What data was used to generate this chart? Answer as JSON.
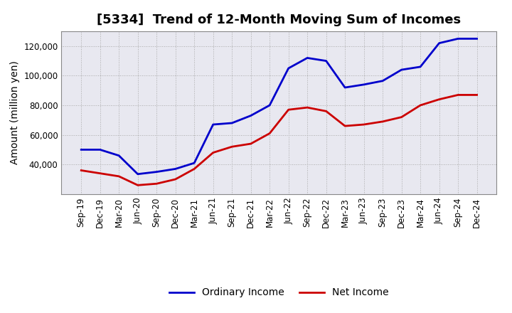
{
  "title": "[5334]  Trend of 12-Month Moving Sum of Incomes",
  "ylabel": "Amount (million yen)",
  "background_color": "#ffffff",
  "plot_bg_color": "#e8e8f0",
  "grid_color": "#aaaaaa",
  "xlabels": [
    "Sep-19",
    "Dec-19",
    "Mar-20",
    "Jun-20",
    "Sep-20",
    "Dec-20",
    "Mar-21",
    "Jun-21",
    "Sep-21",
    "Dec-21",
    "Mar-22",
    "Jun-22",
    "Sep-22",
    "Dec-22",
    "Mar-23",
    "Jun-23",
    "Sep-23",
    "Dec-23",
    "Mar-24",
    "Jun-24",
    "Sep-24",
    "Dec-24"
  ],
  "ordinary_income": [
    50000,
    50000,
    46000,
    33500,
    35000,
    37000,
    41000,
    67000,
    68000,
    73000,
    80000,
    105000,
    112000,
    110000,
    92000,
    94000,
    96500,
    104000,
    106000,
    122000,
    125000,
    125000
  ],
  "net_income": [
    36000,
    34000,
    32000,
    26000,
    27000,
    30000,
    37000,
    48000,
    52000,
    54000,
    61000,
    77000,
    78500,
    76000,
    66000,
    67000,
    69000,
    72000,
    80000,
    84000,
    87000,
    87000
  ],
  "ordinary_color": "#0000cc",
  "net_color": "#cc0000",
  "ylim": [
    20000,
    130000
  ],
  "yticks": [
    40000,
    60000,
    80000,
    100000,
    120000
  ],
  "line_width": 2.0,
  "title_fontsize": 13,
  "tick_fontsize": 8.5,
  "ylabel_fontsize": 10,
  "legend_fontsize": 10
}
